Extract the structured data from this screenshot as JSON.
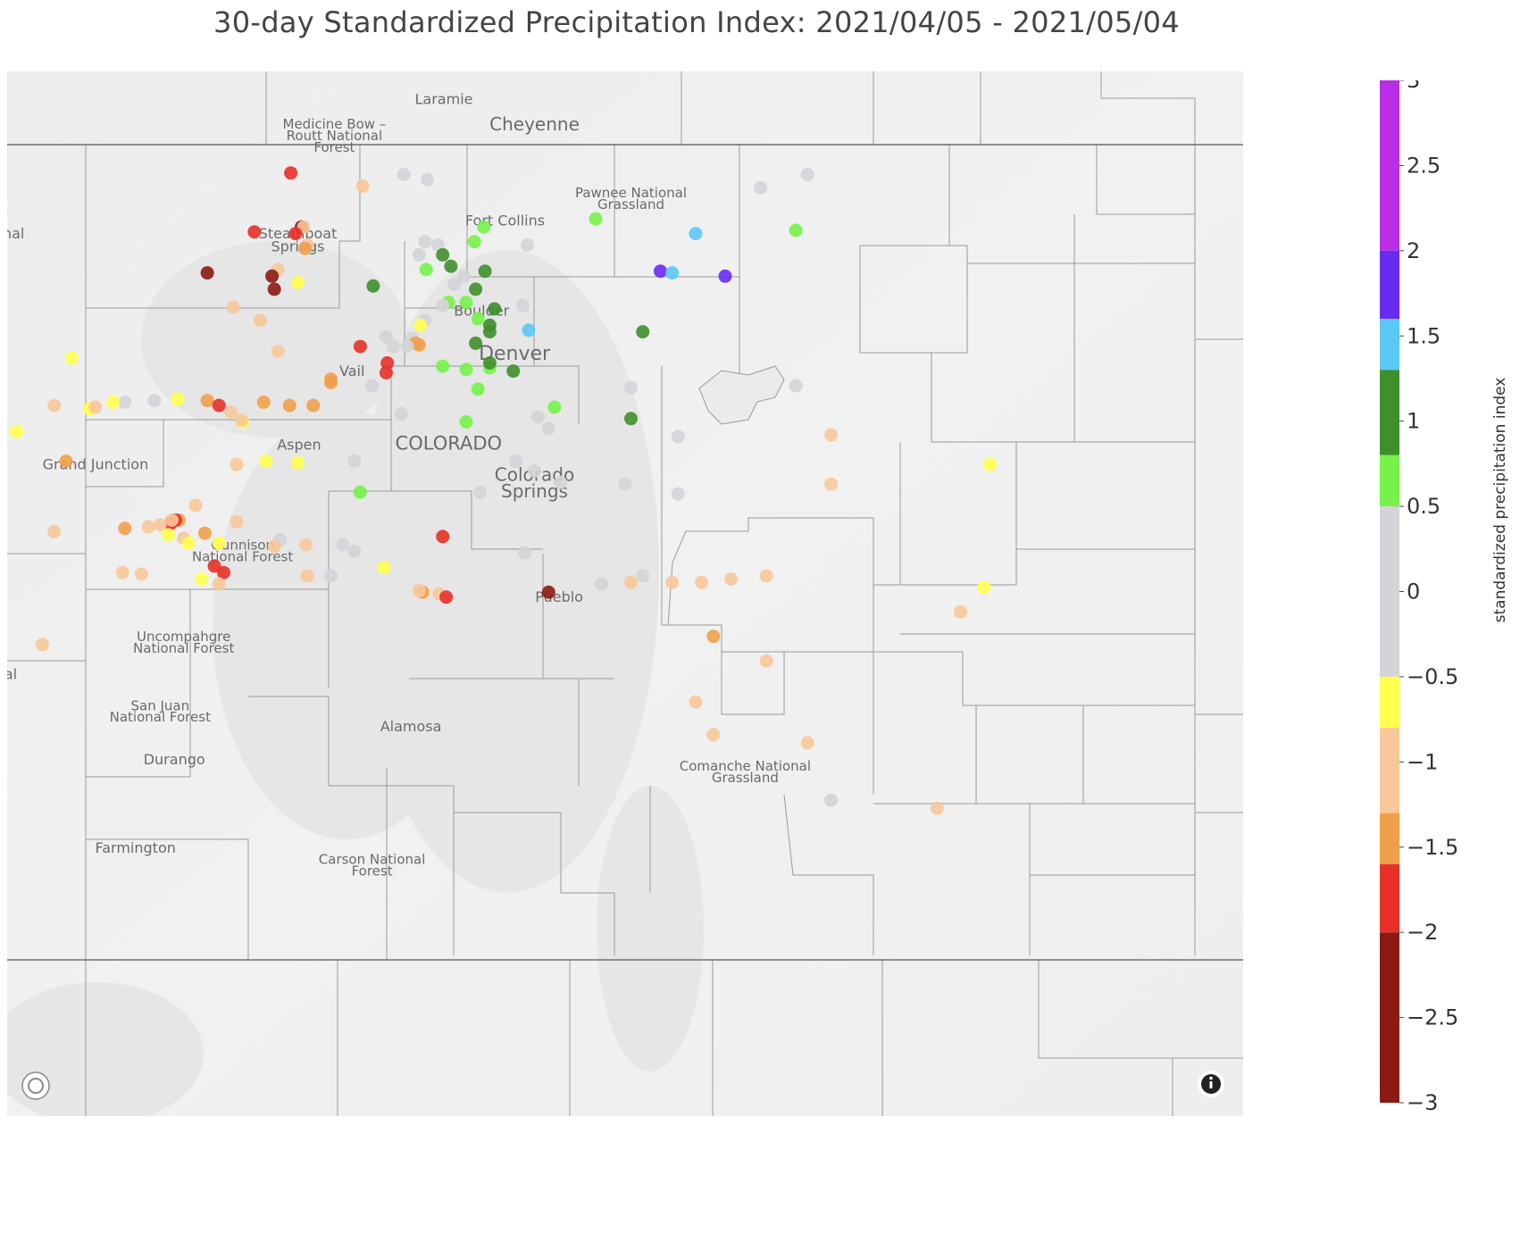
{
  "title": "30-day Standardized Precipitation Index: 2021/04/05 -  2021/05/04",
  "colorbar": {
    "title": "standardized precipitation index",
    "ticks": [
      "3",
      "2.5",
      "2",
      "1.5",
      "1",
      "0.5",
      "0",
      "−0.5",
      "−1",
      "−1.5",
      "−2",
      "−2.5",
      "−3"
    ],
    "bins": [
      {
        "from": 2,
        "to": 3,
        "color": "#b92ee6"
      },
      {
        "from": 1.6,
        "to": 2,
        "color": "#6a2bf0"
      },
      {
        "from": 1.3,
        "to": 1.6,
        "color": "#5bc8f5"
      },
      {
        "from": 0.8,
        "to": 1.3,
        "color": "#3f8f2a"
      },
      {
        "from": 0.5,
        "to": 0.8,
        "color": "#76f24a"
      },
      {
        "from": -0.5,
        "to": 0.5,
        "color": "#d3d3d8"
      },
      {
        "from": -0.8,
        "to": -0.5,
        "color": "#ffff4d"
      },
      {
        "from": -1.3,
        "to": -0.8,
        "color": "#f7c89a"
      },
      {
        "from": -1.6,
        "to": -1.3,
        "color": "#f0a04a"
      },
      {
        "from": -2,
        "to": -1.6,
        "color": "#e8302a"
      },
      {
        "from": -3,
        "to": -2,
        "color": "#8b1a12"
      }
    ]
  },
  "map": {
    "places": [
      {
        "name": "Medicine Bow –",
        "lon": -106.52,
        "lat": 41.15,
        "size": 15
      },
      {
        "name": "Routt National",
        "lon": -106.52,
        "lat": 41.08,
        "size": 15
      },
      {
        "name": "Forest",
        "lon": -106.52,
        "lat": 41.01,
        "size": 15
      },
      {
        "name": "Laramie",
        "lon": -105.59,
        "lat": 41.3,
        "size": 16
      },
      {
        "name": "Cheyenne",
        "lon": -104.82,
        "lat": 41.14,
        "size": 20
      },
      {
        "name": "Pawnee National",
        "lon": -104.0,
        "lat": 40.73,
        "size": 15
      },
      {
        "name": "Grassland",
        "lon": -104.0,
        "lat": 40.66,
        "size": 15
      },
      {
        "name": "Fort Collins",
        "lon": -105.07,
        "lat": 40.56,
        "size": 16
      },
      {
        "name": "Steamboat",
        "lon": -106.83,
        "lat": 40.48,
        "size": 16
      },
      {
        "name": "Springs",
        "lon": -106.83,
        "lat": 40.4,
        "size": 16
      },
      {
        "name": "Boulder",
        "lon": -105.27,
        "lat": 40.01,
        "size": 16
      },
      {
        "name": "Denver",
        "lon": -104.99,
        "lat": 39.74,
        "size": 22
      },
      {
        "name": "Vail",
        "lon": -106.37,
        "lat": 39.64,
        "size": 16
      },
      {
        "name": "Aspen",
        "lon": -106.82,
        "lat": 39.19,
        "size": 16
      },
      {
        "name": "COLORADO",
        "lon": -105.55,
        "lat": 39.19,
        "size": 21
      },
      {
        "name": "Grand Junction",
        "lon": -108.55,
        "lat": 39.07,
        "size": 16
      },
      {
        "name": "Colorado",
        "lon": -104.82,
        "lat": 39.0,
        "size": 20
      },
      {
        "name": "Springs",
        "lon": -104.82,
        "lat": 38.9,
        "size": 20
      },
      {
        "name": "Gunnison",
        "lon": -107.3,
        "lat": 38.58,
        "size": 15
      },
      {
        "name": "National Forest",
        "lon": -107.3,
        "lat": 38.51,
        "size": 15
      },
      {
        "name": "Pueblo",
        "lon": -104.61,
        "lat": 38.26,
        "size": 16
      },
      {
        "name": "Uncompahgre",
        "lon": -107.8,
        "lat": 38.02,
        "size": 15
      },
      {
        "name": "National Forest",
        "lon": -107.8,
        "lat": 37.95,
        "size": 15
      },
      {
        "name": "San Juan",
        "lon": -108.0,
        "lat": 37.6,
        "size": 15
      },
      {
        "name": "National Forest",
        "lon": -108.0,
        "lat": 37.53,
        "size": 15
      },
      {
        "name": "Alamosa",
        "lon": -105.87,
        "lat": 37.47,
        "size": 16
      },
      {
        "name": "Durango",
        "lon": -107.88,
        "lat": 37.27,
        "size": 16
      },
      {
        "name": "Comanche National",
        "lon": -103.03,
        "lat": 37.23,
        "size": 15
      },
      {
        "name": "Grassland",
        "lon": -103.03,
        "lat": 37.16,
        "size": 15
      },
      {
        "name": "Farmington",
        "lon": -108.21,
        "lat": 36.73,
        "size": 16
      },
      {
        "name": "Carson National",
        "lon": -106.2,
        "lat": 36.66,
        "size": 15
      },
      {
        "name": "Forest",
        "lon": -106.2,
        "lat": 36.59,
        "size": 15
      },
      {
        "name": "rnal",
        "lon": -109.27,
        "lat": 40.48,
        "size": 16
      },
      {
        "name": "al",
        "lon": -109.27,
        "lat": 37.79,
        "size": 16
      }
    ],
    "stations": [
      {
        "lon": -106.89,
        "lat": 40.88,
        "spi": -1.8
      },
      {
        "lon": -106.28,
        "lat": 40.8,
        "spi": -1.0
      },
      {
        "lon": -105.93,
        "lat": 40.87,
        "spi": 0.0
      },
      {
        "lon": -105.73,
        "lat": 40.84,
        "spi": 0.0
      },
      {
        "lon": -107.2,
        "lat": 40.52,
        "spi": -1.8
      },
      {
        "lon": -106.8,
        "lat": 40.55,
        "spi": -2.1
      },
      {
        "lon": -106.78,
        "lat": 40.55,
        "spi": -1.0
      },
      {
        "lon": -106.85,
        "lat": 40.51,
        "spi": -1.8
      },
      {
        "lon": -106.75,
        "lat": 40.44,
        "spi": -1.0
      },
      {
        "lon": -106.77,
        "lat": 40.42,
        "spi": -1.5
      },
      {
        "lon": -105.75,
        "lat": 40.46,
        "spi": 0.0
      },
      {
        "lon": -105.64,
        "lat": 40.44,
        "spi": 0.0
      },
      {
        "lon": -105.25,
        "lat": 40.55,
        "spi": 0.7
      },
      {
        "lon": -105.33,
        "lat": 40.46,
        "spi": 0.7
      },
      {
        "lon": -104.88,
        "lat": 40.44,
        "spi": 0.0
      },
      {
        "lon": -104.3,
        "lat": 40.6,
        "spi": 0.7
      },
      {
        "lon": -103.45,
        "lat": 40.51,
        "spi": 1.5
      },
      {
        "lon": -102.6,
        "lat": 40.53,
        "spi": 0.7
      },
      {
        "lon": -102.9,
        "lat": 40.79,
        "spi": 0.0
      },
      {
        "lon": -102.5,
        "lat": 40.87,
        "spi": 0.0
      },
      {
        "lon": -105.8,
        "lat": 40.38,
        "spi": 0.0
      },
      {
        "lon": -105.6,
        "lat": 40.38,
        "spi": 1.0
      },
      {
        "lon": -105.53,
        "lat": 40.31,
        "spi": 1.0
      },
      {
        "lon": -105.74,
        "lat": 40.29,
        "spi": 0.7
      },
      {
        "lon": -105.24,
        "lat": 40.28,
        "spi": 1.0
      },
      {
        "lon": -103.75,
        "lat": 40.28,
        "spi": 1.8
      },
      {
        "lon": -103.65,
        "lat": 40.27,
        "spi": 1.5
      },
      {
        "lon": -103.2,
        "lat": 40.25,
        "spi": 1.8
      },
      {
        "lon": -107.6,
        "lat": 40.27,
        "spi": -2.1
      },
      {
        "lon": -107.0,
        "lat": 40.29,
        "spi": -1.0
      },
      {
        "lon": -106.83,
        "lat": 40.21,
        "spi": -0.6
      },
      {
        "lon": -106.19,
        "lat": 40.19,
        "spi": 1.0
      },
      {
        "lon": -107.05,
        "lat": 40.25,
        "spi": -2.2
      },
      {
        "lon": -107.03,
        "lat": 40.17,
        "spi": -2.2
      },
      {
        "lon": -105.5,
        "lat": 40.2,
        "spi": 0.0
      },
      {
        "lon": -105.42,
        "lat": 40.25,
        "spi": 0.0
      },
      {
        "lon": -105.32,
        "lat": 40.17,
        "spi": 1.0
      },
      {
        "lon": -105.55,
        "lat": 40.09,
        "spi": 0.7
      },
      {
        "lon": -105.4,
        "lat": 40.09,
        "spi": 0.7
      },
      {
        "lon": -105.6,
        "lat": 40.07,
        "spi": 0.0
      },
      {
        "lon": -105.16,
        "lat": 40.05,
        "spi": 1.0
      },
      {
        "lon": -104.92,
        "lat": 40.07,
        "spi": 0.0
      },
      {
        "lon": -107.38,
        "lat": 40.06,
        "spi": -1.0
      },
      {
        "lon": -107.15,
        "lat": 39.98,
        "spi": -1.0
      },
      {
        "lon": -105.3,
        "lat": 39.99,
        "spi": 0.7
      },
      {
        "lon": -105.75,
        "lat": 39.98,
        "spi": 0.0
      },
      {
        "lon": -105.79,
        "lat": 39.95,
        "spi": -0.6
      },
      {
        "lon": -105.2,
        "lat": 39.95,
        "spi": 1.0
      },
      {
        "lon": -105.2,
        "lat": 39.91,
        "spi": 1.0
      },
      {
        "lon": -104.87,
        "lat": 39.92,
        "spi": 1.5
      },
      {
        "lon": -103.9,
        "lat": 39.91,
        "spi": 1.0
      },
      {
        "lon": -106.08,
        "lat": 39.88,
        "spi": 0.0
      },
      {
        "lon": -105.86,
        "lat": 39.87,
        "spi": 0.0
      },
      {
        "lon": -105.8,
        "lat": 39.83,
        "spi": -1.5
      },
      {
        "lon": -105.83,
        "lat": 39.84,
        "spi": -1.5
      },
      {
        "lon": -105.9,
        "lat": 39.82,
        "spi": 0.0
      },
      {
        "lon": -106.3,
        "lat": 39.82,
        "spi": -1.8
      },
      {
        "lon": -106.02,
        "lat": 39.82,
        "spi": 0.0
      },
      {
        "lon": -105.32,
        "lat": 39.84,
        "spi": 1.0
      },
      {
        "lon": -107.0,
        "lat": 39.79,
        "spi": -1.0
      },
      {
        "lon": -108.75,
        "lat": 39.75,
        "spi": -0.6
      },
      {
        "lon": -106.07,
        "lat": 39.72,
        "spi": -1.8
      },
      {
        "lon": -105.6,
        "lat": 39.7,
        "spi": 0.7
      },
      {
        "lon": -105.4,
        "lat": 39.68,
        "spi": 0.7
      },
      {
        "lon": -105.2,
        "lat": 39.69,
        "spi": 0.7
      },
      {
        "lon": -105.2,
        "lat": 39.72,
        "spi": 1.0
      },
      {
        "lon": -105.0,
        "lat": 39.67,
        "spi": 1.0
      },
      {
        "lon": -106.08,
        "lat": 39.66,
        "spi": -1.8
      },
      {
        "lon": -106.55,
        "lat": 39.6,
        "spi": -1.5
      },
      {
        "lon": -106.55,
        "lat": 39.62,
        "spi": -1.5
      },
      {
        "lon": -106.2,
        "lat": 39.58,
        "spi": 0.0
      },
      {
        "lon": -105.3,
        "lat": 39.56,
        "spi": 0.7
      },
      {
        "lon": -104.0,
        "lat": 39.57,
        "spi": 0.0
      },
      {
        "lon": -102.6,
        "lat": 39.58,
        "spi": 0.0
      },
      {
        "lon": -107.6,
        "lat": 39.49,
        "spi": -1.5
      },
      {
        "lon": -107.85,
        "lat": 39.5,
        "spi": -0.6
      },
      {
        "lon": -108.3,
        "lat": 39.48,
        "spi": 0.0
      },
      {
        "lon": -108.05,
        "lat": 39.49,
        "spi": 0.0
      },
      {
        "lon": -107.5,
        "lat": 39.46,
        "spi": -1.8
      },
      {
        "lon": -107.12,
        "lat": 39.48,
        "spi": -1.5
      },
      {
        "lon": -106.9,
        "lat": 39.46,
        "spi": -1.5
      },
      {
        "lon": -106.7,
        "lat": 39.46,
        "spi": -1.5
      },
      {
        "lon": -108.9,
        "lat": 39.46,
        "spi": -1.0
      },
      {
        "lon": -108.6,
        "lat": 39.44,
        "spi": -0.6
      },
      {
        "lon": -108.4,
        "lat": 39.48,
        "spi": -0.6
      },
      {
        "lon": -108.55,
        "lat": 39.45,
        "spi": -1.0
      },
      {
        "lon": -107.4,
        "lat": 39.42,
        "spi": -1.0
      },
      {
        "lon": -107.3,
        "lat": 39.36,
        "spi": -0.6
      },
      {
        "lon": -107.31,
        "lat": 39.37,
        "spi": -1.0
      },
      {
        "lon": -105.95,
        "lat": 39.41,
        "spi": 0.0
      },
      {
        "lon": -105.4,
        "lat": 39.36,
        "spi": 0.7
      },
      {
        "lon": -104.65,
        "lat": 39.45,
        "spi": 0.7
      },
      {
        "lon": -104.79,
        "lat": 39.39,
        "spi": 0.0
      },
      {
        "lon": -104.0,
        "lat": 39.38,
        "spi": 1.0
      },
      {
        "lon": -109.22,
        "lat": 39.3,
        "spi": -0.6
      },
      {
        "lon": -104.7,
        "lat": 39.32,
        "spi": 0.0
      },
      {
        "lon": -103.6,
        "lat": 39.27,
        "spi": 0.0
      },
      {
        "lon": -102.3,
        "lat": 39.28,
        "spi": -1.0
      },
      {
        "lon": -108.8,
        "lat": 39.12,
        "spi": -1.5
      },
      {
        "lon": -107.35,
        "lat": 39.1,
        "spi": -1.0
      },
      {
        "lon": -107.1,
        "lat": 39.12,
        "spi": -0.6
      },
      {
        "lon": -106.83,
        "lat": 39.11,
        "spi": -0.6
      },
      {
        "lon": -106.35,
        "lat": 39.12,
        "spi": 0.0
      },
      {
        "lon": -104.98,
        "lat": 39.12,
        "spi": 0.0
      },
      {
        "lon": -104.82,
        "lat": 39.06,
        "spi": 0.0
      },
      {
        "lon": -102.3,
        "lat": 38.98,
        "spi": -1.0
      },
      {
        "lon": -100.95,
        "lat": 39.1,
        "spi": -0.6
      },
      {
        "lon": -104.6,
        "lat": 38.99,
        "spi": 0.0
      },
      {
        "lon": -104.05,
        "lat": 38.98,
        "spi": 0.0
      },
      {
        "lon": -103.6,
        "lat": 38.92,
        "spi": 0.0
      },
      {
        "lon": -105.28,
        "lat": 38.93,
        "spi": 0.0
      },
      {
        "lon": -106.3,
        "lat": 38.93,
        "spi": 0.7
      },
      {
        "lon": -107.7,
        "lat": 38.85,
        "spi": -1.0
      },
      {
        "lon": -107.84,
        "lat": 38.76,
        "spi": -1.5
      },
      {
        "lon": -107.35,
        "lat": 38.75,
        "spi": -1.0
      },
      {
        "lon": -108.1,
        "lat": 38.72,
        "spi": -1.0
      },
      {
        "lon": -107.87,
        "lat": 38.76,
        "spi": -1.8
      },
      {
        "lon": -107.91,
        "lat": 38.74,
        "spi": -1.8
      },
      {
        "lon": -107.9,
        "lat": 38.76,
        "spi": -1.0
      },
      {
        "lon": -108.3,
        "lat": 38.71,
        "spi": -1.5
      },
      {
        "lon": -108.0,
        "lat": 38.73,
        "spi": -1.0
      },
      {
        "lon": -107.62,
        "lat": 38.68,
        "spi": -1.5
      },
      {
        "lon": -107.93,
        "lat": 38.67,
        "spi": -0.6
      },
      {
        "lon": -107.8,
        "lat": 38.65,
        "spi": -1.0
      },
      {
        "lon": -107.76,
        "lat": 38.62,
        "spi": -0.6
      },
      {
        "lon": -107.5,
        "lat": 38.62,
        "spi": -0.6
      },
      {
        "lon": -108.9,
        "lat": 38.69,
        "spi": -1.0
      },
      {
        "lon": -106.98,
        "lat": 38.64,
        "spi": 0.0
      },
      {
        "lon": -107.03,
        "lat": 38.6,
        "spi": -1.0
      },
      {
        "lon": -106.76,
        "lat": 38.61,
        "spi": -1.0
      },
      {
        "lon": -106.45,
        "lat": 38.61,
        "spi": 0.0
      },
      {
        "lon": -106.35,
        "lat": 38.57,
        "spi": 0.0
      },
      {
        "lon": -105.6,
        "lat": 38.66,
        "spi": -1.8
      },
      {
        "lon": -104.9,
        "lat": 38.56,
        "spi": 0.0
      },
      {
        "lon": -105.77,
        "lat": 38.32,
        "spi": -1.5
      },
      {
        "lon": -105.8,
        "lat": 38.33,
        "spi": -1.0
      },
      {
        "lon": -105.63,
        "lat": 38.31,
        "spi": -1.0
      },
      {
        "lon": -105.57,
        "lat": 38.29,
        "spi": -1.8
      },
      {
        "lon": -104.7,
        "lat": 38.32,
        "spi": -2.3
      },
      {
        "lon": -107.54,
        "lat": 38.48,
        "spi": -1.8
      },
      {
        "lon": -107.46,
        "lat": 38.44,
        "spi": -1.8
      },
      {
        "lon": -108.32,
        "lat": 38.44,
        "spi": -1.0
      },
      {
        "lon": -108.16,
        "lat": 38.43,
        "spi": -1.0
      },
      {
        "lon": -107.65,
        "lat": 38.4,
        "spi": -0.6
      },
      {
        "lon": -107.5,
        "lat": 38.37,
        "spi": -1.0
      },
      {
        "lon": -106.75,
        "lat": 38.42,
        "spi": -1.0
      },
      {
        "lon": -106.55,
        "lat": 38.42,
        "spi": 0.0
      },
      {
        "lon": -106.1,
        "lat": 38.47,
        "spi": -0.6
      },
      {
        "lon": -104.25,
        "lat": 38.37,
        "spi": 0.0
      },
      {
        "lon": -104.0,
        "lat": 38.38,
        "spi": -1.0
      },
      {
        "lon": -103.9,
        "lat": 38.42,
        "spi": 0.0
      },
      {
        "lon": -103.65,
        "lat": 38.38,
        "spi": -1.0
      },
      {
        "lon": -103.4,
        "lat": 38.38,
        "spi": -1.0
      },
      {
        "lon": -103.15,
        "lat": 38.4,
        "spi": -1.0
      },
      {
        "lon": -102.85,
        "lat": 38.42,
        "spi": -1.0
      },
      {
        "lon": -101.2,
        "lat": 38.2,
        "spi": -1.0
      },
      {
        "lon": -101.0,
        "lat": 38.35,
        "spi": -0.6
      },
      {
        "lon": -103.3,
        "lat": 38.05,
        "spi": -1.5
      },
      {
        "lon": -102.85,
        "lat": 37.9,
        "spi": -1.0
      },
      {
        "lon": -103.45,
        "lat": 37.65,
        "spi": -1.0
      },
      {
        "lon": -103.3,
        "lat": 37.45,
        "spi": -1.0
      },
      {
        "lon": -102.5,
        "lat": 37.4,
        "spi": -1.0
      },
      {
        "lon": -102.3,
        "lat": 37.05,
        "spi": 0.0
      },
      {
        "lon": -101.4,
        "lat": 37.0,
        "spi": -1.0
      },
      {
        "lon": -109.0,
        "lat": 38.0,
        "spi": -1.0
      }
    ]
  }
}
